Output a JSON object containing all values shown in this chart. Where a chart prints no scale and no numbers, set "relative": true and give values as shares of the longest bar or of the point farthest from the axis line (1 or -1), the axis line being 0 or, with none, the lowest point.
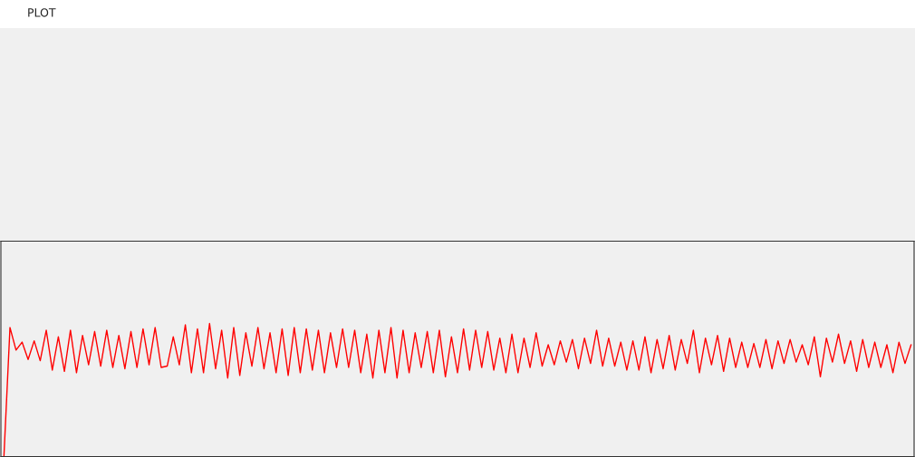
{
  "chart_data": {
    "type": "line",
    "title": "PLOT",
    "relative": true,
    "legend": false,
    "categories": [
      null,
      null,
      null,
      null,
      null,
      null,
      null,
      null,
      null,
      null,
      null,
      null,
      null,
      null,
      null,
      null,
      null,
      null,
      null,
      null,
      null,
      null,
      null,
      null,
      null,
      null,
      null,
      null,
      null,
      null,
      null,
      null,
      null,
      null,
      null,
      null,
      null,
      null,
      null,
      null,
      null,
      null,
      null,
      null,
      null,
      null,
      null,
      null,
      null,
      null,
      null,
      null,
      null,
      null,
      null,
      null,
      null,
      null,
      null,
      null,
      null,
      null,
      null,
      null,
      null,
      null,
      null,
      null,
      null,
      null,
      null,
      null,
      null,
      null,
      null,
      null,
      null,
      null,
      null,
      null,
      null,
      null,
      null,
      null,
      null,
      null,
      null,
      null,
      null,
      null,
      null,
      null,
      null,
      null,
      null,
      null,
      null,
      null,
      null,
      null,
      null,
      null,
      null,
      null,
      null,
      null,
      null,
      null,
      null,
      null,
      null,
      null,
      null,
      null,
      null,
      null,
      null,
      null,
      null,
      null,
      null,
      null,
      null,
      null,
      null,
      null,
      null,
      null,
      null,
      null,
      null,
      null,
      null,
      null,
      null,
      null,
      null,
      null,
      null,
      null,
      null,
      null,
      null,
      null,
      null,
      null,
      null,
      null,
      null,
      null,
      null
    ],
    "series": [
      {
        "color": "#ff0000",
        "values": [
          0,
          0.97,
          0.8,
          0.86,
          0.73,
          0.87,
          0.72,
          0.95,
          0.65,
          0.9,
          0.64,
          0.95,
          0.63,
          0.91,
          0.69,
          0.94,
          0.68,
          0.95,
          0.67,
          0.91,
          0.66,
          0.94,
          0.67,
          0.96,
          0.69,
          0.97,
          0.67,
          0.68,
          0.9,
          0.69,
          0.99,
          0.63,
          0.96,
          0.63,
          1.0,
          0.66,
          0.95,
          0.59,
          0.97,
          0.61,
          0.93,
          0.68,
          0.97,
          0.66,
          0.93,
          0.63,
          0.96,
          0.61,
          0.97,
          0.63,
          0.96,
          0.65,
          0.95,
          0.63,
          0.93,
          0.67,
          0.96,
          0.67,
          0.95,
          0.63,
          0.92,
          0.59,
          0.95,
          0.63,
          0.97,
          0.59,
          0.95,
          0.63,
          0.93,
          0.67,
          0.94,
          0.63,
          0.95,
          0.6,
          0.9,
          0.63,
          0.96,
          0.65,
          0.95,
          0.67,
          0.94,
          0.65,
          0.89,
          0.63,
          0.92,
          0.63,
          0.89,
          0.67,
          0.93,
          0.68,
          0.84,
          0.69,
          0.87,
          0.71,
          0.88,
          0.66,
          0.89,
          0.7,
          0.95,
          0.68,
          0.89,
          0.68,
          0.86,
          0.65,
          0.87,
          0.65,
          0.9,
          0.63,
          0.88,
          0.66,
          0.91,
          0.65,
          0.88,
          0.7,
          0.95,
          0.63,
          0.89,
          0.69,
          0.91,
          0.64,
          0.89,
          0.67,
          0.86,
          0.67,
          0.85,
          0.67,
          0.88,
          0.66,
          0.87,
          0.7,
          0.88,
          0.71,
          0.84,
          0.69,
          0.9,
          0.6,
          0.89,
          0.71,
          0.92,
          0.7,
          0.87,
          0.64,
          0.88,
          0.67,
          0.86,
          0.67,
          0.84,
          0.63,
          0.86,
          0.7,
          0.84
        ]
      }
    ]
  }
}
